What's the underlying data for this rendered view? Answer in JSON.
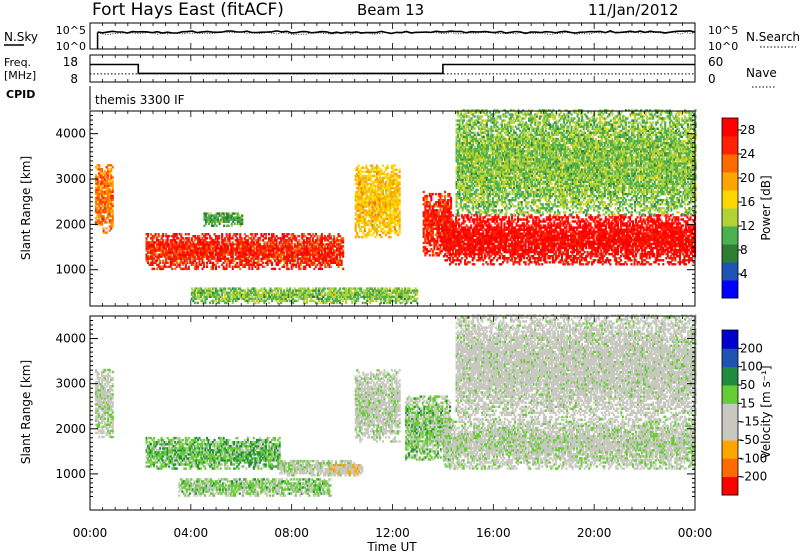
{
  "header": {
    "title": "Fort Hays East (fitACF)",
    "beam": "Beam 13",
    "date": "11/Jan/2012"
  },
  "noise_panel": {
    "left_label": "N.Sky",
    "left_ticks": [
      "10^5",
      "10^0"
    ],
    "right_label": "N.Search",
    "right_ticks": [
      "10^5",
      "10^0"
    ]
  },
  "freq_panel": {
    "left_label_line1": "Freq.",
    "left_label_line2": "[MHz]",
    "left_ticks": [
      "18",
      "8"
    ],
    "right_label": "Nave",
    "right_ticks": [
      "60",
      "0"
    ],
    "cpid_label": "CPID",
    "cpid_text": "themis 3300 IF"
  },
  "colors": {
    "power_scale": [
      "#0000ff",
      "#1e52b4",
      "#2e7d32",
      "#4caf50",
      "#b2d235",
      "#ffd700",
      "#ffa500",
      "#ff6a00",
      "#ff2200",
      "#ff0000"
    ],
    "velocity_scale": [
      "#ff0000",
      "#ff6a00",
      "#ffa500",
      "#c8c8c0",
      "#c8c8c0",
      "#66cc33",
      "#1e8c3c",
      "#1e52b4",
      "#0000cc"
    ]
  },
  "chart_data": [
    {
      "type": "line",
      "panel": "noise",
      "x": [
        "00:00",
        "04:00",
        "08:00",
        "12:00",
        "16:00",
        "20:00",
        "00:00"
      ],
      "series": [
        {
          "name": "N.Sky",
          "values": [
            3.2,
            3.3,
            3.2,
            3.3,
            3.2,
            3.3,
            3.2
          ]
        },
        {
          "name": "N.Search",
          "values": [
            3.0,
            3.1,
            3.0,
            3.1,
            3.0,
            3.1,
            3.0
          ]
        }
      ],
      "ylim": [
        0,
        5
      ]
    },
    {
      "type": "line",
      "panel": "frequency",
      "series": [
        {
          "name": "Freq.",
          "x": [
            "00:00",
            "01:55",
            "01:55",
            "14:00",
            "14:00",
            "24:00"
          ],
          "values": [
            14.5,
            14.5,
            11.2,
            11.2,
            14.5,
            14.5
          ]
        },
        {
          "name": "Nave",
          "x": [
            "00:00",
            "24:00"
          ],
          "values": [
            18,
            18
          ]
        }
      ],
      "ylim": [
        8,
        18
      ],
      "y2lim": [
        0,
        60
      ]
    },
    {
      "type": "heatmap",
      "panel": "power",
      "ylabel": "Slant Range [km]",
      "yticks": [
        "1000",
        "2000",
        "3000",
        "4000"
      ],
      "ylim": [
        200,
        4500
      ],
      "colorbar_label": "Power [dB]",
      "colorbar_ticks": [
        "4",
        "8",
        "12",
        "16",
        "20",
        "24",
        "28"
      ],
      "colorbar_range": [
        0,
        30
      ],
      "features": [
        {
          "t": [
            0.2,
            0.9
          ],
          "r": [
            1800,
            3300
          ],
          "value": 22
        },
        {
          "t": [
            2.2,
            10.0
          ],
          "r": [
            1000,
            1800
          ],
          "value": 26
        },
        {
          "t": [
            4.5,
            6.0
          ],
          "r": [
            1950,
            2250
          ],
          "value": 10
        },
        {
          "t": [
            10.5,
            12.3
          ],
          "r": [
            1700,
            3300
          ],
          "value": 18
        },
        {
          "t": [
            13.2,
            14.3
          ],
          "r": [
            1300,
            2700
          ],
          "value": 26
        },
        {
          "t": [
            14.0,
            24.0
          ],
          "r": [
            1100,
            2200
          ],
          "value": 28
        },
        {
          "t": [
            14.5,
            24.0
          ],
          "r": [
            2200,
            4500
          ],
          "value": 12
        },
        {
          "t": [
            4.0,
            13.0
          ],
          "r": [
            250,
            600
          ],
          "value": 12
        }
      ]
    },
    {
      "type": "heatmap",
      "panel": "velocity",
      "ylabel": "Slant Range [km]",
      "yticks": [
        "1000",
        "2000",
        "3000",
        "4000"
      ],
      "ylim": [
        200,
        4500
      ],
      "xlabel": "Time UT",
      "xticks": [
        "00:00",
        "04:00",
        "08:00",
        "12:00",
        "16:00",
        "20:00",
        "00:00"
      ],
      "colorbar_label": "Velocity [m s⁻¹]",
      "colorbar_ticks": [
        "200",
        "100",
        "50",
        "15",
        "-15",
        "-50",
        "-100",
        "-200"
      ],
      "colorbar_range": [
        -250,
        250
      ],
      "features": [
        {
          "t": [
            0.2,
            0.9
          ],
          "r": [
            1800,
            3300
          ],
          "value": 0
        },
        {
          "t": [
            2.2,
            7.5
          ],
          "r": [
            1100,
            1800
          ],
          "value": 60
        },
        {
          "t": [
            7.5,
            10.5
          ],
          "r": [
            950,
            1300
          ],
          "value": 0
        },
        {
          "t": [
            9.5,
            10.8
          ],
          "r": [
            950,
            1200
          ],
          "value": -60
        },
        {
          "t": [
            3.5,
            9.5
          ],
          "r": [
            500,
            900
          ],
          "value": 40
        },
        {
          "t": [
            12.5,
            14.3
          ],
          "r": [
            1300,
            2700
          ],
          "value": 40
        },
        {
          "t": [
            14.0,
            24.0
          ],
          "r": [
            1100,
            2200
          ],
          "value": 0
        },
        {
          "t": [
            10.5,
            12.3
          ],
          "r": [
            1700,
            3300
          ],
          "value": 0
        },
        {
          "t": [
            14.5,
            24.0
          ],
          "r": [
            2200,
            4500
          ],
          "value": -15
        }
      ]
    }
  ]
}
